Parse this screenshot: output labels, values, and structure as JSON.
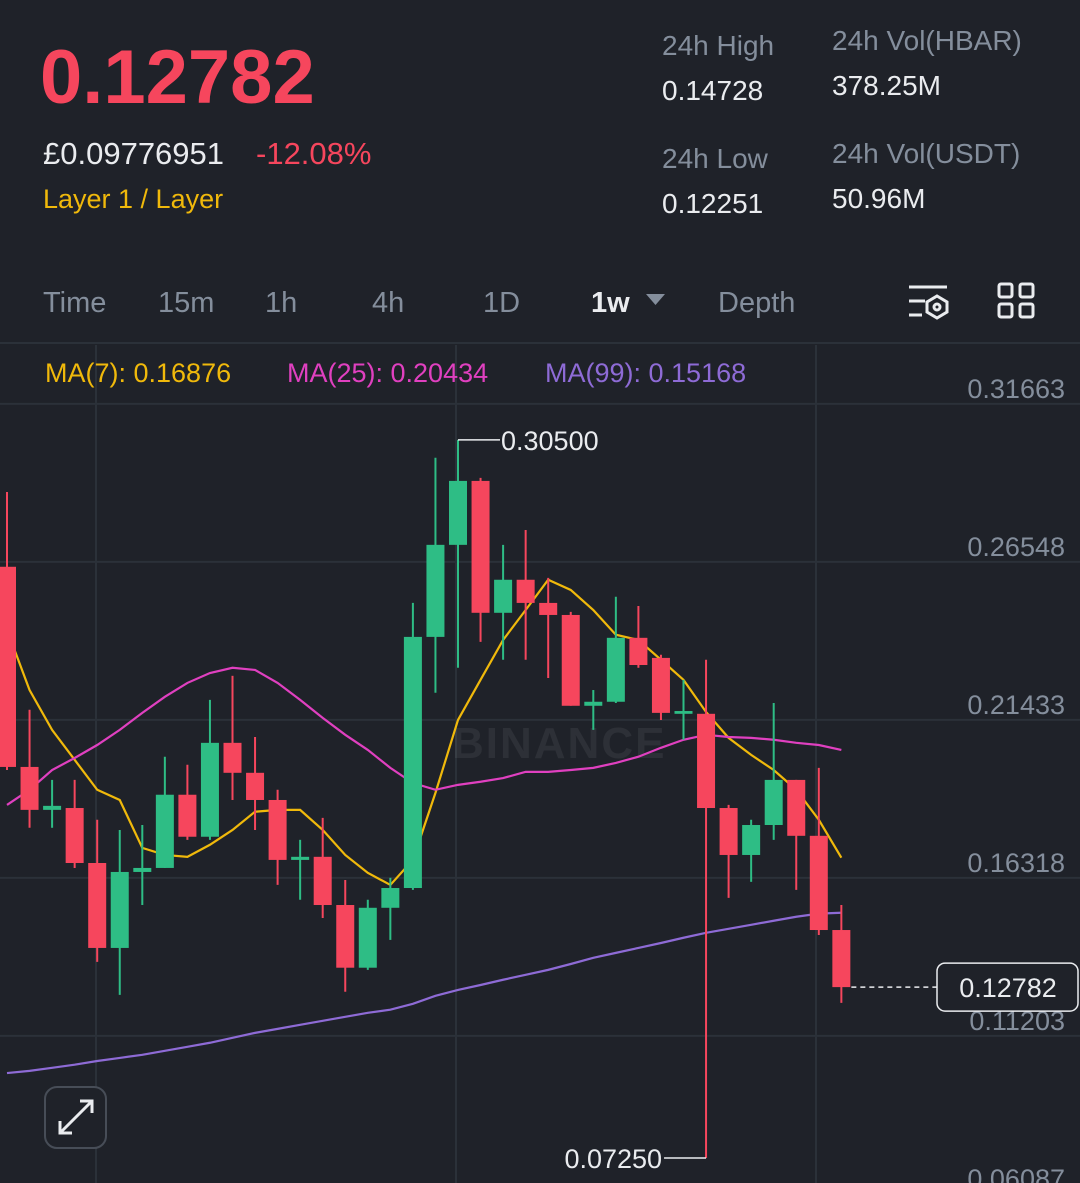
{
  "header": {
    "price": "0.12782",
    "fiat_price": "£0.09776951",
    "change": "-12.08%",
    "category": "Layer 1 / Layer"
  },
  "stats": [
    {
      "label": "24h High",
      "value": "0.14728"
    },
    {
      "label": "24h Vol(HBAR)",
      "value": "378.25M"
    },
    {
      "label": "24h Low",
      "value": "0.12251"
    },
    {
      "label": "24h Vol(USDT)",
      "value": "50.96M"
    }
  ],
  "tabs": [
    "Time",
    "15m",
    "1h",
    "4h",
    "1D",
    "1w",
    "Depth"
  ],
  "chart_data": {
    "type": "candlestick",
    "watermark": "BINANCE",
    "open": [
      0.2639,
      0.1991,
      0.1852,
      0.1858,
      0.168,
      0.1405,
      0.1651,
      0.1664,
      0.1901,
      0.1765,
      0.2069,
      0.1972,
      0.1884,
      0.169,
      0.17,
      0.1544,
      0.1341,
      0.1535,
      0.1599,
      0.2412,
      0.271,
      0.2917,
      0.249,
      0.2597,
      0.2522,
      0.2483,
      0.2189,
      0.2202,
      0.2409,
      0.2344,
      0.2163,
      0.2163,
      0.1858,
      0.1706,
      0.1803,
      0.1949,
      0.1768,
      0.1463
    ],
    "high": [
      0.2881,
      0.2176,
      0.1949,
      0.1949,
      0.182,
      0.1787,
      0.1803,
      0.2024,
      0.1998,
      0.2208,
      0.2286,
      0.2088,
      0.1917,
      0.1755,
      0.1826,
      0.1625,
      0.1561,
      0.1632,
      0.2522,
      0.2992,
      0.305,
      0.2927,
      0.271,
      0.2758,
      0.2603,
      0.2493,
      0.224,
      0.2542,
      0.2512,
      0.2354,
      0.2273,
      0.2338,
      0.1868,
      0.182,
      0.2198,
      0.1949,
      0.1988,
      0.1544
    ],
    "low": [
      0.1981,
      0.1794,
      0.1794,
      0.1664,
      0.136,
      0.1253,
      0.1544,
      0.1664,
      0.1755,
      0.1755,
      0.1884,
      0.1787,
      0.1609,
      0.1561,
      0.1502,
      0.1263,
      0.1334,
      0.1431,
      0.1593,
      0.2231,
      0.2312,
      0.2396,
      0.2338,
      0.2338,
      0.2279,
      0.2189,
      0.2111,
      0.2198,
      0.2312,
      0.2143,
      0.2079,
      0.0725,
      0.1567,
      0.1619,
      0.1755,
      0.1593,
      0.1447,
      0.1227
    ],
    "close": [
      0.1991,
      0.1852,
      0.1865,
      0.168,
      0.1405,
      0.1651,
      0.1664,
      0.1901,
      0.1765,
      0.2069,
      0.1972,
      0.1884,
      0.169,
      0.17,
      0.1544,
      0.1341,
      0.1535,
      0.1599,
      0.2412,
      0.271,
      0.2917,
      0.249,
      0.2597,
      0.2522,
      0.2483,
      0.2189,
      0.2202,
      0.2409,
      0.2321,
      0.2166,
      0.2172,
      0.1858,
      0.1706,
      0.1803,
      0.1949,
      0.1768,
      0.1463,
      0.12782
    ],
    "up_color": "#2ebd85",
    "down_color": "#f6465d",
    "series": [
      {
        "name": "MA(7): 0.16876",
        "color": "#f0b90b",
        "values": [
          0.2435,
          0.224,
          0.2111,
          0.2014,
          0.1917,
          0.1884,
          0.1729,
          0.1706,
          0.17,
          0.1739,
          0.1787,
          0.1846,
          0.1852,
          0.1852,
          0.1787,
          0.1706,
          0.1648,
          0.1609,
          0.169,
          0.1907,
          0.2143,
          0.2273,
          0.2402,
          0.2499,
          0.2597,
          0.2564,
          0.2499,
          0.2419,
          0.2402,
          0.2338,
          0.2273,
          0.2169,
          0.2085,
          0.203,
          0.1981,
          0.1917,
          0.182,
          0.1697
        ]
      },
      {
        "name": "MA(25): 0.20434",
        "color": "#e040c0",
        "values": [
          0.1868,
          0.1917,
          0.1981,
          0.202,
          0.2062,
          0.2111,
          0.2166,
          0.2218,
          0.2263,
          0.2295,
          0.2312,
          0.2305,
          0.2263,
          0.2208,
          0.215,
          0.2095,
          0.2046,
          0.1988,
          0.1939,
          0.1917,
          0.1933,
          0.1943,
          0.1955,
          0.1975,
          0.1975,
          0.1981,
          0.1988,
          0.2004,
          0.2024,
          0.2053,
          0.2079,
          0.2095,
          0.2088,
          0.2085,
          0.2079,
          0.2069,
          0.2062,
          0.2046
        ]
      },
      {
        "name": "MA(99): 0.15168",
        "color": "#8e6bd6",
        "values": [
          0.1,
          0.1007,
          0.1017,
          0.1027,
          0.1039,
          0.1049,
          0.1059,
          0.1072,
          0.1085,
          0.1098,
          0.1114,
          0.113,
          0.1143,
          0.1156,
          0.1169,
          0.1182,
          0.1195,
          0.1205,
          0.1224,
          0.125,
          0.1269,
          0.1285,
          0.1302,
          0.1318,
          0.1334,
          0.1353,
          0.1373,
          0.1389,
          0.1405,
          0.1421,
          0.1438,
          0.1454,
          0.1467,
          0.148,
          0.1493,
          0.1506,
          0.1516,
          0.1519
        ]
      }
    ],
    "ylim": [
      0.0644,
      0.3357
    ],
    "yticks": [
      0.31663,
      0.26548,
      0.21433,
      0.16318,
      0.11203,
      0.06087
    ],
    "grid": true,
    "annotations": [
      {
        "value": 0.305,
        "label": "0.30500"
      },
      {
        "value": 0.0725,
        "label": "0.07250"
      }
    ]
  }
}
